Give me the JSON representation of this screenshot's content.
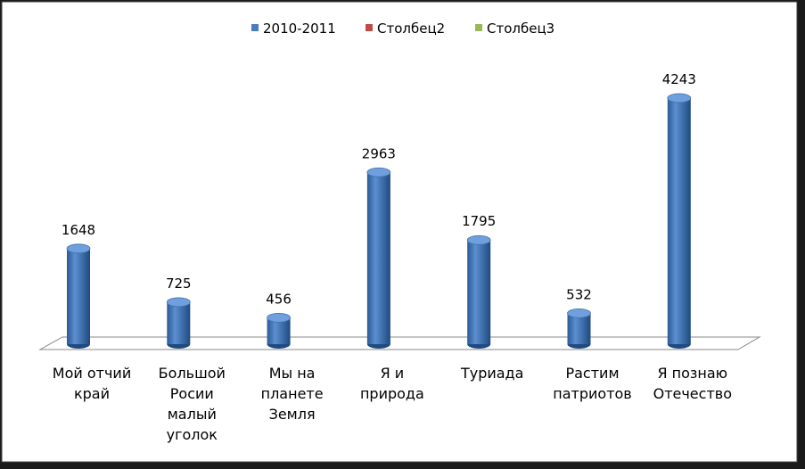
{
  "chart_data": {
    "type": "bar3d",
    "categories": [
      "Мой отчий\nкрай",
      "Большой\nРосии\nмалый\nуголок",
      "Мы на\nпланете\nЗемля",
      "Я и\nприрода",
      "Туриада",
      "Растим\nпатриотов",
      "Я познаю\nОтечество"
    ],
    "series": [
      {
        "name": "2010-2011",
        "color": "#4a7ebb",
        "values": [
          1648,
          725,
          456,
          2963,
          1795,
          532,
          4243
        ]
      },
      {
        "name": "Столбец2",
        "color": "#be4b48",
        "values": [
          null,
          null,
          null,
          null,
          null,
          null,
          null
        ]
      },
      {
        "name": "Столбец3",
        "color": "#98b954",
        "values": [
          null,
          null,
          null,
          null,
          null,
          null,
          null
        ]
      }
    ],
    "legend": "top"
  }
}
